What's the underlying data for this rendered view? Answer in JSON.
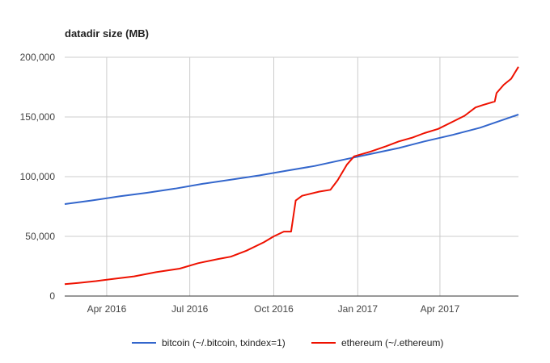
{
  "chart_data": {
    "type": "line",
    "title": "datadir size (MB)",
    "xlabel": "",
    "ylabel": "",
    "x_start": "2016-02-15",
    "x_end": "2017-06-26",
    "ylim": [
      0,
      200000
    ],
    "y_ticks": [
      {
        "value": 0,
        "label": "0"
      },
      {
        "value": 50000,
        "label": "50,000"
      },
      {
        "value": 100000,
        "label": "100,000"
      },
      {
        "value": 150000,
        "label": "150,000"
      },
      {
        "value": 200000,
        "label": "200,000"
      }
    ],
    "x_ticks": [
      {
        "date": "2016-04-01",
        "label": "Apr 2016"
      },
      {
        "date": "2016-07-01",
        "label": "Jul 2016"
      },
      {
        "date": "2016-10-01",
        "label": "Oct 2016"
      },
      {
        "date": "2017-01-01",
        "label": "Jan 2017"
      },
      {
        "date": "2017-04-01",
        "label": "Apr 2017"
      }
    ],
    "grid": true,
    "legend_position": "bottom",
    "series": [
      {
        "name": "bitcoin (~/.bitcoin, txindex=1)",
        "color": "#3366cc",
        "points": [
          [
            "2016-02-15",
            77000
          ],
          [
            "2016-03-15",
            80000
          ],
          [
            "2016-04-15",
            83500
          ],
          [
            "2016-05-15",
            86500
          ],
          [
            "2016-06-15",
            90000
          ],
          [
            "2016-07-15",
            94000
          ],
          [
            "2016-08-15",
            97500
          ],
          [
            "2016-09-15",
            101000
          ],
          [
            "2016-10-15",
            105000
          ],
          [
            "2016-11-15",
            109000
          ],
          [
            "2016-12-15",
            114000
          ],
          [
            "2017-01-15",
            119000
          ],
          [
            "2017-02-15",
            124000
          ],
          [
            "2017-03-15",
            129500
          ],
          [
            "2017-04-15",
            135000
          ],
          [
            "2017-05-15",
            141000
          ],
          [
            "2017-06-26",
            152000
          ]
        ]
      },
      {
        "name": "ethereum (~/.ethereum)",
        "color": "#ee1100",
        "points": [
          [
            "2016-02-15",
            10000
          ],
          [
            "2016-03-01",
            11000
          ],
          [
            "2016-03-20",
            12500
          ],
          [
            "2016-04-10",
            14500
          ],
          [
            "2016-05-01",
            16500
          ],
          [
            "2016-05-25",
            20000
          ],
          [
            "2016-06-20",
            23000
          ],
          [
            "2016-07-10",
            27500
          ],
          [
            "2016-08-01",
            31000
          ],
          [
            "2016-08-15",
            33000
          ],
          [
            "2016-09-01",
            38000
          ],
          [
            "2016-09-20",
            45000
          ],
          [
            "2016-10-01",
            50000
          ],
          [
            "2016-10-12",
            54000
          ],
          [
            "2016-10-20",
            54000
          ],
          [
            "2016-10-25",
            80000
          ],
          [
            "2016-11-01",
            84000
          ],
          [
            "2016-11-20",
            87500
          ],
          [
            "2016-12-02",
            89000
          ],
          [
            "2016-12-10",
            97000
          ],
          [
            "2016-12-20",
            110000
          ],
          [
            "2016-12-28",
            117000
          ],
          [
            "2017-01-15",
            121000
          ],
          [
            "2017-02-01",
            125500
          ],
          [
            "2017-02-15",
            129500
          ],
          [
            "2017-03-01",
            132500
          ],
          [
            "2017-03-15",
            136500
          ],
          [
            "2017-03-30",
            140000
          ],
          [
            "2017-04-15",
            146000
          ],
          [
            "2017-04-28",
            151000
          ],
          [
            "2017-05-10",
            158000
          ],
          [
            "2017-05-18",
            160000
          ],
          [
            "2017-05-31",
            163000
          ],
          [
            "2017-06-02",
            170000
          ],
          [
            "2017-06-10",
            177000
          ],
          [
            "2017-06-18",
            182000
          ],
          [
            "2017-06-26",
            192000
          ]
        ]
      }
    ]
  }
}
